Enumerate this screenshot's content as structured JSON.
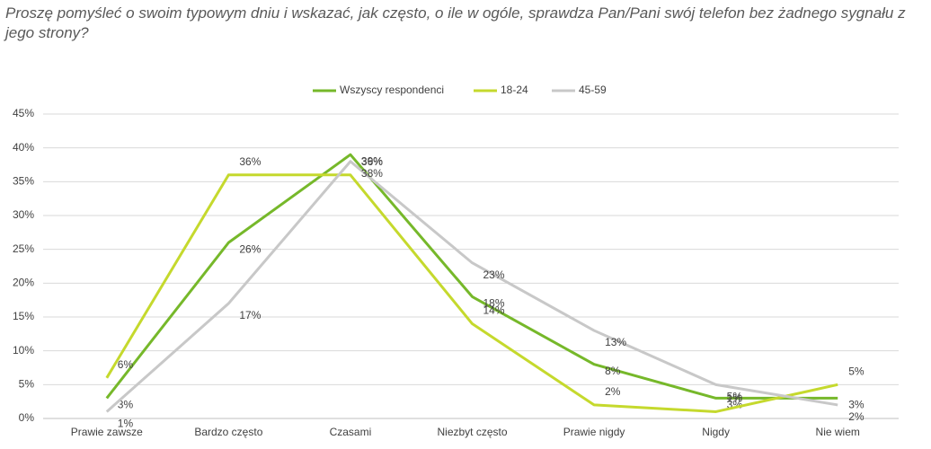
{
  "chart_data": {
    "type": "line",
    "title": "Proszę pomyśleć o swoim typowym dniu i wskazać, jak często, o ile w ogóle, sprawdza Pan/Pani swój telefon bez żadnego sygnału z jego strony?",
    "categories": [
      "Prawie zawsze",
      "Bardzo często",
      "Czasami",
      "Niezbyt często",
      "Prawie nigdy",
      "Nigdy",
      "Nie wiem"
    ],
    "series": [
      {
        "name": "Wszyscy respondenci",
        "color": "#76b82a",
        "values": [
          3,
          26,
          39,
          18,
          8,
          3,
          3
        ],
        "value_labels": [
          "3%",
          "26%",
          "39%",
          "18%",
          "8%",
          "3%",
          "3%"
        ]
      },
      {
        "name": "18-24",
        "color": "#c5d92d",
        "values": [
          6,
          36,
          36,
          14,
          2,
          1,
          5
        ],
        "value_labels": [
          "6%",
          "36%",
          "36%",
          "14%",
          "2%",
          "1%",
          "5%"
        ]
      },
      {
        "name": "45-59",
        "color": "#c8c8c8",
        "values": [
          1,
          17,
          38,
          23,
          13,
          5,
          2
        ],
        "value_labels": [
          "1%",
          "17%",
          "38%",
          "23%",
          "13%",
          "5%",
          "2%"
        ]
      }
    ],
    "ylim": [
      0,
      45
    ],
    "yticks": [
      {
        "value": 0,
        "label": "0%"
      },
      {
        "value": 5,
        "label": "5%"
      },
      {
        "value": 10,
        "label": "10%"
      },
      {
        "value": 15,
        "label": "15%"
      },
      {
        "value": 20,
        "label": "20%"
      },
      {
        "value": 25,
        "label": "25%"
      },
      {
        "value": 30,
        "label": "30%"
      },
      {
        "value": 35,
        "label": "35%"
      },
      {
        "value": 40,
        "label": "40%"
      },
      {
        "value": 45,
        "label": "45%"
      }
    ],
    "grid": true,
    "legend": "top"
  }
}
